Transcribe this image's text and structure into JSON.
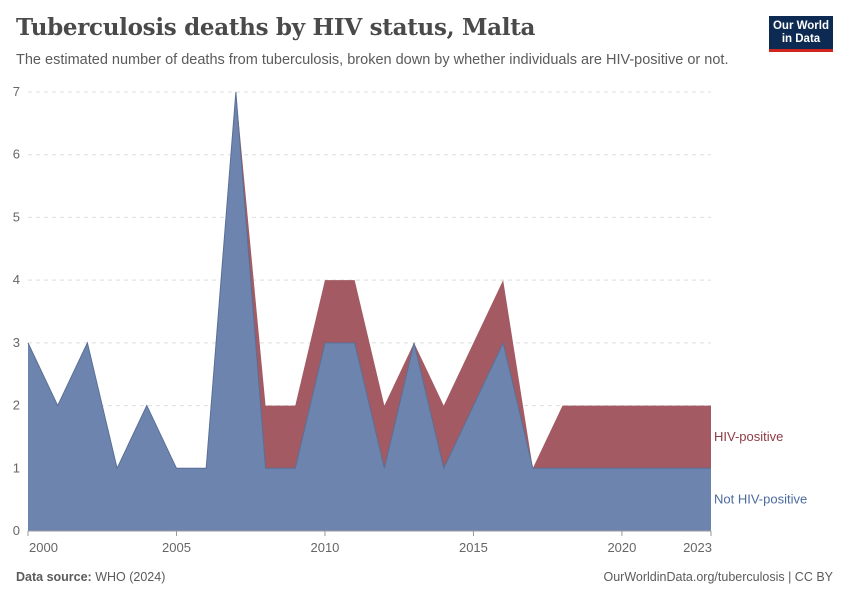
{
  "header": {
    "title": "Tuberculosis deaths by HIV status, Malta",
    "subtitle": "The estimated number of deaths from tuberculosis, broken down by whether individuals are HIV-positive or not."
  },
  "logo": {
    "line1": "Our World",
    "line2": "in Data"
  },
  "footer": {
    "source_label": "Data source:",
    "source_value": "WHO (2024)",
    "url": "OurWorldinData.org/tuberculosis | CC BY"
  },
  "colors": {
    "not_hiv_positive": "#6d85ae",
    "hiv_positive": "#a35a63",
    "not_hiv_positive_label": "#4c6a9c",
    "hiv_positive_label": "#8d3a44",
    "grid": "#dddddd"
  },
  "chart_data": {
    "type": "area",
    "stacked": true,
    "x": [
      2000,
      2001,
      2002,
      2003,
      2004,
      2005,
      2006,
      2007,
      2008,
      2009,
      2010,
      2011,
      2012,
      2013,
      2014,
      2015,
      2016,
      2017,
      2018,
      2019,
      2020,
      2021,
      2022,
      2023
    ],
    "xlim": [
      2000,
      2023
    ],
    "ylim": [
      0,
      7
    ],
    "x_ticks": [
      {
        "value": 2000,
        "label": "2000"
      },
      {
        "value": 2005,
        "label": "2005"
      },
      {
        "value": 2010,
        "label": "2010"
      },
      {
        "value": 2015,
        "label": "2015"
      },
      {
        "value": 2020,
        "label": "2020"
      },
      {
        "value": 2023,
        "label": "2023"
      }
    ],
    "y_ticks": [
      {
        "value": 0,
        "label": "0"
      },
      {
        "value": 1,
        "label": "1"
      },
      {
        "value": 2,
        "label": "2"
      },
      {
        "value": 3,
        "label": "3"
      },
      {
        "value": 4,
        "label": "4"
      },
      {
        "value": 5,
        "label": "5"
      },
      {
        "value": 6,
        "label": "6"
      },
      {
        "value": 7,
        "label": "7"
      }
    ],
    "grid": true,
    "series": [
      {
        "name": "Not HIV-positive",
        "values": [
          3,
          2,
          3,
          1,
          2,
          1,
          1,
          7,
          1,
          1,
          3,
          3,
          1,
          3,
          1,
          2,
          3,
          1,
          1,
          1,
          1,
          1,
          1,
          1
        ]
      },
      {
        "name": "HIV-positive",
        "values": [
          0,
          0,
          0,
          0,
          0,
          0,
          0,
          0,
          1,
          1,
          1,
          1,
          1,
          0,
          1,
          1,
          1,
          0,
          1,
          1,
          1,
          1,
          1,
          1
        ]
      }
    ]
  }
}
